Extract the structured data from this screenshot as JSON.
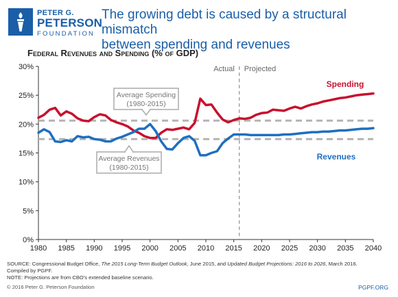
{
  "logo": {
    "line1": "PETER G.",
    "line2": "PETERSON",
    "line3": "FOUNDATION"
  },
  "headline": {
    "line1": "The growing debt is caused by a structural mismatch",
    "line2": "between spending and revenues"
  },
  "colors": {
    "brand_blue": "#1a5ea8",
    "spending": "#c8102e",
    "revenues": "#1f6fc0",
    "average": "#b3b3b3"
  },
  "chart_data": {
    "type": "line",
    "title": "Federal Revenues and Spending (% of GDP)",
    "xlim": [
      1980,
      2040
    ],
    "ylim": [
      0,
      30
    ],
    "x_ticks": [
      "1980",
      "1985",
      "1990",
      "1995",
      "2000",
      "2005",
      "2010",
      "2015",
      "2020",
      "2025",
      "2030",
      "2035",
      "2040"
    ],
    "y_ticks": [
      "0%",
      "5%",
      "10%",
      "15%",
      "20%",
      "25%",
      "30%"
    ],
    "grid": false,
    "divider": {
      "x": 2016,
      "left_label": "Actual",
      "right_label": "Projected"
    },
    "series": [
      {
        "name": "Spending",
        "color": "#c8102e",
        "x": [
          1980,
          1981,
          1982,
          1983,
          1984,
          1985,
          1986,
          1987,
          1988,
          1989,
          1990,
          1991,
          1992,
          1993,
          1994,
          1995,
          1996,
          1997,
          1998,
          1999,
          2000,
          2001,
          2002,
          2003,
          2004,
          2005,
          2006,
          2007,
          2008,
          2009,
          2010,
          2011,
          2012,
          2013,
          2014,
          2015,
          2016,
          2017,
          2018,
          2019,
          2020,
          2021,
          2022,
          2023,
          2024,
          2025,
          2026,
          2027,
          2028,
          2029,
          2030,
          2031,
          2032,
          2033,
          2034,
          2035,
          2036,
          2037,
          2038,
          2039,
          2040
        ],
        "values": [
          21.1,
          21.6,
          22.5,
          22.8,
          21.5,
          22.2,
          21.8,
          21.0,
          20.6,
          20.5,
          21.2,
          21.7,
          21.5,
          20.7,
          20.3,
          20.0,
          19.6,
          18.9,
          18.5,
          17.9,
          17.6,
          17.6,
          18.5,
          19.1,
          19.0,
          19.2,
          19.4,
          19.1,
          20.2,
          24.4,
          23.3,
          23.4,
          22.0,
          20.8,
          20.3,
          20.7,
          21.0,
          20.9,
          21.1,
          21.6,
          21.9,
          22.0,
          22.5,
          22.4,
          22.3,
          22.7,
          23.0,
          22.7,
          23.1,
          23.4,
          23.6,
          23.9,
          24.1,
          24.3,
          24.5,
          24.6,
          24.8,
          25.0,
          25.1,
          25.2,
          25.3
        ],
        "label": "Spending"
      },
      {
        "name": "Revenues",
        "color": "#1f6fc0",
        "x": [
          1980,
          1981,
          1982,
          1983,
          1984,
          1985,
          1986,
          1987,
          1988,
          1989,
          1990,
          1991,
          1992,
          1993,
          1994,
          1995,
          1996,
          1997,
          1998,
          1999,
          2000,
          2001,
          2002,
          2003,
          2004,
          2005,
          2006,
          2007,
          2008,
          2009,
          2010,
          2011,
          2012,
          2013,
          2014,
          2015,
          2016,
          2017,
          2018,
          2019,
          2020,
          2021,
          2022,
          2023,
          2024,
          2025,
          2026,
          2027,
          2028,
          2029,
          2030,
          2031,
          2032,
          2033,
          2034,
          2035,
          2036,
          2037,
          2038,
          2039,
          2040
        ],
        "values": [
          18.5,
          19.1,
          18.6,
          17.0,
          16.9,
          17.2,
          17.0,
          17.9,
          17.7,
          17.8,
          17.4,
          17.3,
          17.0,
          17.0,
          17.5,
          17.8,
          18.2,
          18.6,
          19.2,
          19.2,
          20.0,
          18.8,
          17.0,
          15.7,
          15.6,
          16.7,
          17.6,
          17.9,
          17.1,
          14.6,
          14.6,
          15.0,
          15.3,
          16.7,
          17.5,
          18.2,
          18.2,
          18.2,
          18.1,
          18.1,
          18.1,
          18.1,
          18.1,
          18.1,
          18.2,
          18.2,
          18.3,
          18.4,
          18.5,
          18.6,
          18.6,
          18.7,
          18.7,
          18.8,
          18.9,
          18.9,
          19.0,
          19.1,
          19.2,
          19.2,
          19.3
        ],
        "label": "Revenues"
      }
    ],
    "averages": [
      {
        "name": "Average Spending",
        "period": "(1980-2015)",
        "value": 20.6,
        "color": "#b3b3b3"
      },
      {
        "name": "Average Revenues",
        "period": "(1980-2015)",
        "value": 17.4,
        "color": "#b3b3b3"
      }
    ]
  },
  "footer": {
    "source_prefix": "SOURCE: Congressional Budget Office, ",
    "source_title1": "The 2015 Long-Term Budget Outlook",
    "source_middle": ", June 2015, and ",
    "source_title2": "Updated Budget Projections: 2016 to 2026",
    "source_suffix": ", March 2016.",
    "compiled": "Compiled by PGPF.",
    "note": "NOTE: Projections are from CBO's extended baseline scenario.",
    "copyright": "© 2016 Peter G. Peterson Foundation",
    "site": "PGPF.ORG"
  }
}
